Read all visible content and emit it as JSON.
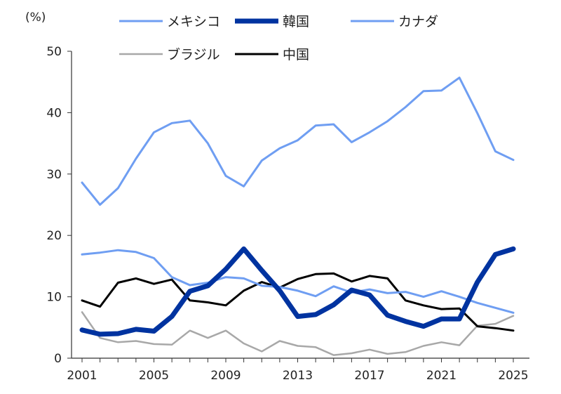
{
  "chart_data": {
    "type": "line",
    "unit_label": "(%)",
    "ylim": [
      0,
      50
    ],
    "yticks": [
      0,
      10,
      20,
      30,
      40,
      50
    ],
    "xlim": [
      2001,
      2025
    ],
    "xticks": [
      2001,
      2005,
      2009,
      2013,
      2017,
      2021,
      2025
    ],
    "x": [
      2001,
      2002,
      2003,
      2004,
      2005,
      2006,
      2007,
      2008,
      2009,
      2010,
      2011,
      2012,
      2013,
      2014,
      2015,
      2016,
      2017,
      2018,
      2019,
      2020,
      2021,
      2022,
      2023,
      2024,
      2025
    ],
    "legend_placement": "top",
    "grid": false,
    "series": [
      {
        "name": "メキシコ",
        "color": "#6f9ef2",
        "width": 3,
        "values": [
          28.6,
          25.0,
          27.7,
          32.5,
          36.8,
          38.3,
          38.7,
          35.0,
          29.7,
          28.0,
          32.2,
          34.2,
          35.5,
          37.9,
          38.1,
          35.2,
          36.8,
          38.6,
          40.9,
          43.5,
          43.6,
          45.7,
          39.9,
          33.7,
          32.3
        ]
      },
      {
        "name": "韓国",
        "color": "#0033a0",
        "width": 7,
        "values": [
          4.6,
          3.9,
          4.0,
          4.7,
          4.4,
          6.8,
          10.9,
          11.8,
          14.5,
          17.8,
          14.3,
          11.0,
          6.8,
          7.1,
          8.7,
          11.1,
          10.3,
          7.0,
          6.0,
          5.2,
          6.4,
          6.4,
          12.4,
          16.9,
          17.8
        ]
      },
      {
        "name": "カナダ",
        "color": "#6f9ef2",
        "width": 3,
        "values": [
          16.9,
          17.2,
          17.6,
          17.3,
          16.3,
          13.2,
          11.9,
          12.3,
          13.2,
          13.0,
          11.8,
          11.6,
          11.0,
          10.1,
          11.7,
          10.7,
          11.2,
          10.6,
          10.8,
          10.0,
          10.9,
          10.0,
          9.0,
          8.2,
          7.4
        ]
      },
      {
        "name": "ブラジル",
        "color": "#a8a8a8",
        "width": 2.5,
        "values": [
          7.5,
          3.3,
          2.6,
          2.8,
          2.3,
          2.2,
          4.5,
          3.3,
          4.5,
          2.4,
          1.1,
          2.8,
          2.0,
          1.8,
          0.5,
          0.8,
          1.4,
          0.7,
          1.0,
          2.0,
          2.6,
          2.1,
          5.3,
          5.6,
          6.9
        ]
      },
      {
        "name": "中国",
        "color": "#000000",
        "width": 3,
        "values": [
          9.4,
          8.4,
          12.3,
          13.0,
          12.1,
          12.8,
          9.4,
          9.1,
          8.6,
          11.0,
          12.4,
          11.5,
          12.9,
          13.7,
          13.8,
          12.5,
          13.4,
          13.0,
          9.4,
          8.6,
          8.0,
          8.1,
          5.2,
          4.9,
          4.5
        ]
      }
    ]
  }
}
